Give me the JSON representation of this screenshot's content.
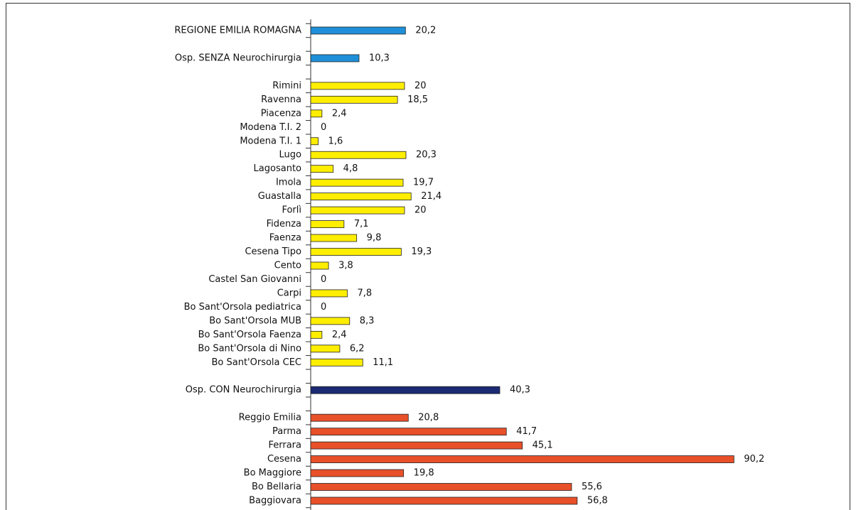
{
  "chart_data": {
    "type": "hbar",
    "categories": [
      "REGIONE EMILIA ROMAGNA",
      null,
      "Osp. SENZA Neurochirurgia",
      null,
      "Rimini",
      "Ravenna",
      "Piacenza",
      "Modena T.I. 2",
      "Modena T.I. 1",
      "Lugo",
      "Lagosanto",
      "Imola",
      "Guastalla",
      "Forlì",
      "Fidenza",
      "Faenza",
      "Cesena Tipo",
      "Cento",
      "Castel San Giovanni",
      "Carpi",
      "Bo Sant'Orsola pediatrica",
      "Bo Sant'Orsola MUB",
      "Bo Sant'Orsola Faenza",
      "Bo Sant'Orsola di Nino",
      "Bo Sant'Orsola CEC",
      null,
      "Osp. CON Neurochirurgia",
      null,
      "Reggio Emilia",
      "Parma",
      "Ferrara",
      "Cesena",
      "Bo Maggiore",
      "Bo Bellaria",
      "Baggiovara"
    ],
    "values": [
      20.2,
      null,
      10.3,
      null,
      20,
      18.5,
      2.4,
      0,
      1.6,
      20.3,
      4.8,
      19.7,
      21.4,
      20,
      7.1,
      9.8,
      19.3,
      3.8,
      0,
      7.8,
      0,
      8.3,
      2.4,
      6.2,
      11.1,
      null,
      40.3,
      null,
      20.8,
      41.7,
      45.1,
      90.2,
      19.8,
      55.6,
      56.8
    ],
    "value_labels": [
      "20,2",
      null,
      "10,3",
      null,
      "20",
      "18,5",
      "2,4",
      "0",
      "1,6",
      "20,3",
      "4,8",
      "19,7",
      "21,4",
      "20",
      "7,1",
      "9,8",
      "19,3",
      "3,8",
      "0",
      "7,8",
      "0",
      "8,3",
      "2,4",
      "6,2",
      "11,1",
      null,
      "40,3",
      null,
      "20,8",
      "41,7",
      "45,1",
      "90,2",
      "19,8",
      "55,6",
      "56,8"
    ],
    "colors": [
      "#1e8fd8",
      null,
      "#1e8fd8",
      null,
      "#ffee00",
      "#ffee00",
      "#ffee00",
      "#ffee00",
      "#ffee00",
      "#ffee00",
      "#ffee00",
      "#ffee00",
      "#ffee00",
      "#ffee00",
      "#ffee00",
      "#ffee00",
      "#ffee00",
      "#ffee00",
      "#ffee00",
      "#ffee00",
      "#ffee00",
      "#ffee00",
      "#ffee00",
      "#ffee00",
      "#ffee00",
      null,
      "#1b2a72",
      null,
      "#e8502a",
      "#e8502a",
      "#e8502a",
      "#e8502a",
      "#e8502a",
      "#e8502a",
      "#e8502a"
    ],
    "xlim": [
      0,
      100
    ]
  }
}
